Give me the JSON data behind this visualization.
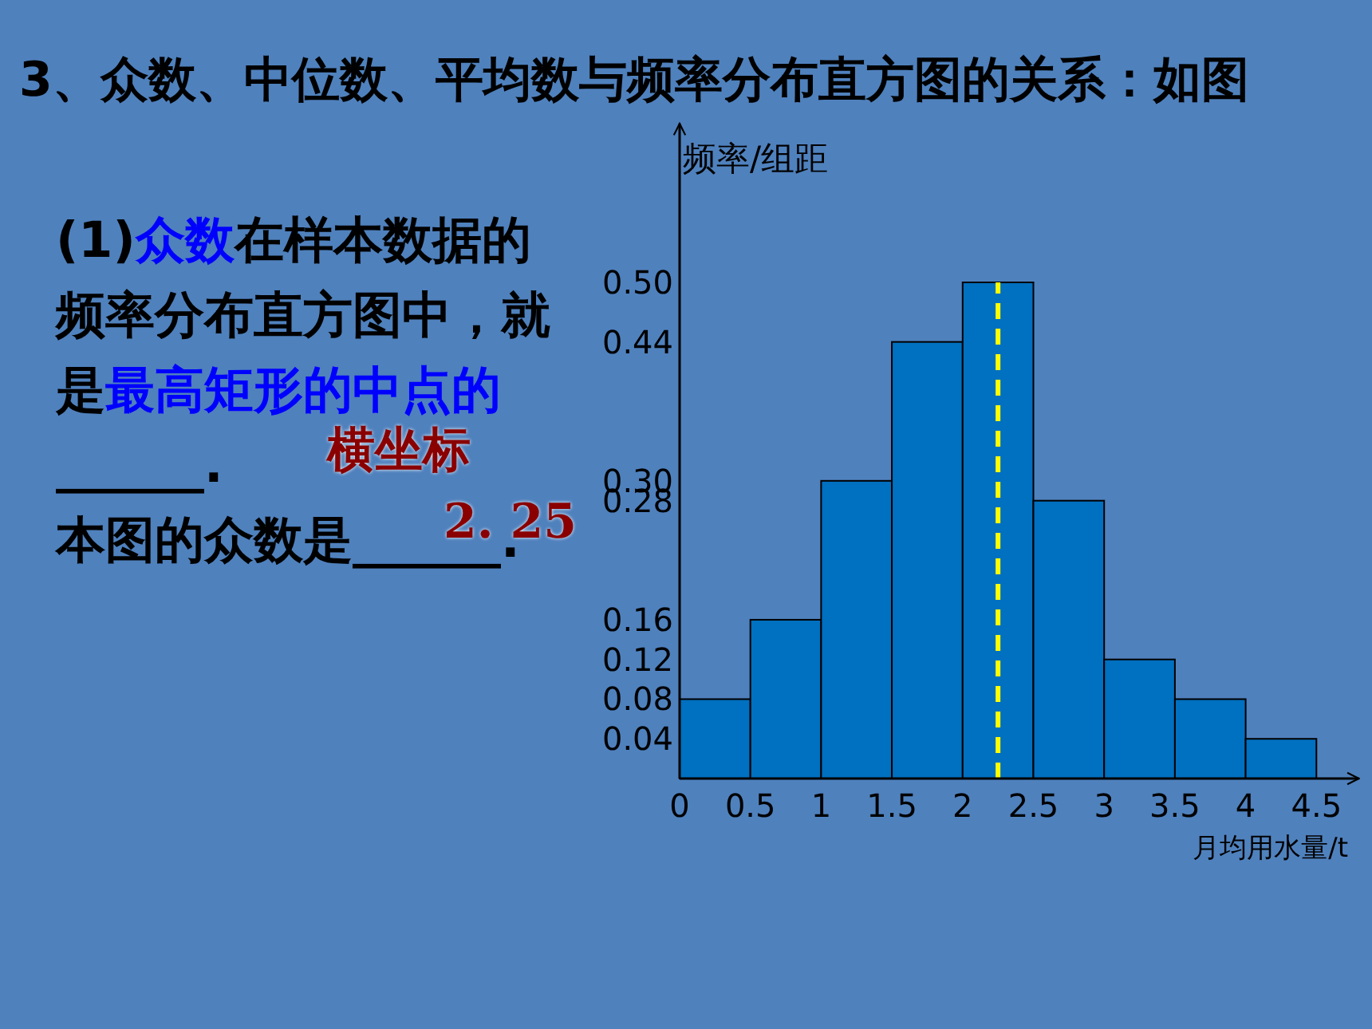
{
  "chart_data": {
    "type": "histogram",
    "title": "3、众数、中位数、平均数与频率分布直方图的关系：如图",
    "xlabel": "月均用水量/t",
    "ylabel": "频率/组距",
    "bins": [
      0,
      0.5,
      1,
      1.5,
      2,
      2.5,
      3,
      3.5,
      4,
      4.5
    ],
    "values": [
      0.08,
      0.16,
      0.3,
      0.44,
      0.5,
      0.28,
      0.12,
      0.08,
      0.04
    ],
    "color": "#0070c0",
    "xlim": [
      0,
      4.8
    ],
    "ylim": [
      0,
      0.66
    ],
    "xticks": [
      0,
      0.5,
      1,
      1.5,
      2,
      2.5,
      3,
      3.5,
      4,
      4.5
    ],
    "yticks": [
      0.04,
      0.08,
      0.12,
      0.16,
      0.28,
      {
        "value": 0.3,
        "label": "0.30"
      },
      0.44,
      {
        "value": 0.5,
        "label": "0.50"
      }
    ],
    "ref_lines": [
      {
        "axis": "x",
        "value": 2.25,
        "color": "#ffff00",
        "line_style": "dashed"
      }
    ],
    "annotations": [
      "(1)",
      "众数",
      "在样本数据的频率分布直方图中，就是",
      "最高矩形的中点的",
      "______.",
      "本图的众数是______.",
      "横坐标",
      "2. 25"
    ]
  }
}
